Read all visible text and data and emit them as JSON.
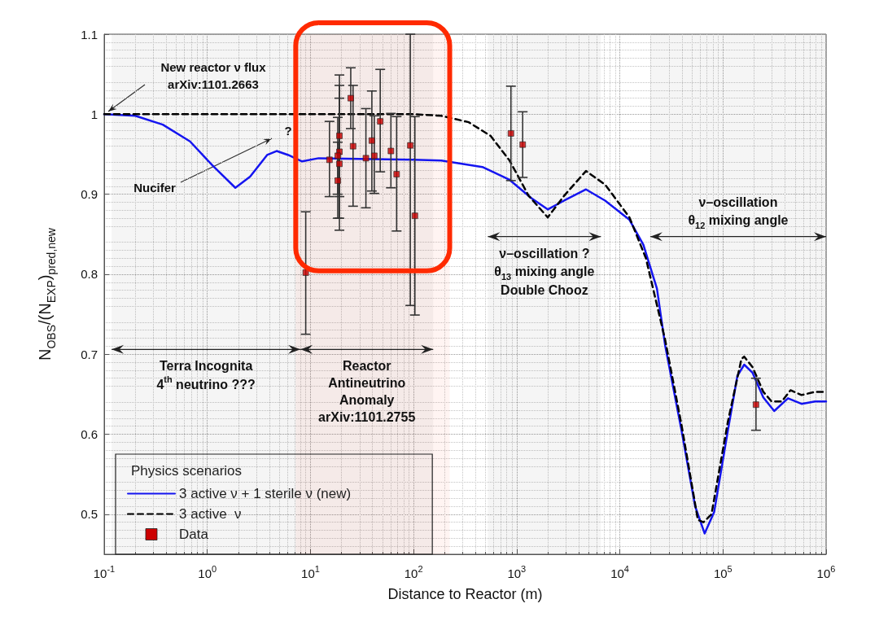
{
  "chart_data": {
    "type": "line",
    "xlabel": "Distance to Reactor (m)",
    "ylabel": "N$_{OBS}$/(N$_{EXP}$)$_{pred,new}$",
    "legend_title": "Physics scenarios",
    "log": "x",
    "grid": true,
    "legend": "bottom left",
    "xlim": [
      0.1,
      1000000
    ],
    "xticks": [
      {
        "value": 0.1,
        "label": "10$^{-1}$"
      },
      {
        "value": 1,
        "label": "10$^{0}$"
      },
      {
        "value": 10,
        "label": "10$^{1}$"
      },
      {
        "value": 100,
        "label": "10$^{2}$"
      },
      {
        "value": 1000,
        "label": "10$^{3}$"
      },
      {
        "value": 10000,
        "label": "10$^{4}$"
      },
      {
        "value": 100000,
        "label": "10$^{5}$"
      },
      {
        "value": 1000000,
        "label": "10$^{6}$"
      }
    ],
    "ylim": [
      0.45,
      1.1
    ],
    "yticks": [
      0.5,
      0.6,
      0.7,
      0.8,
      0.9,
      1,
      1.1
    ],
    "series": [
      {
        "name": "3 active ν + 1 sterile ν (new)",
        "color": "#1515f0",
        "line_style": "solid",
        "marker": "none",
        "x": [
          0.1,
          0.2,
          0.37,
          0.68,
          1.12,
          1.87,
          2.6,
          3.8,
          4.7,
          6.1,
          8.3,
          12,
          100,
          186,
          465,
          853,
          1390,
          2000,
          2880,
          4700,
          7200,
          12400,
          16900,
          22900,
          27500,
          39600,
          53700,
          66400,
          82200,
          111700,
          138000,
          160700,
          193200,
          246000,
          314000,
          427000,
          578000,
          783000,
          1000000
        ],
        "values": [
          1.0,
          0.998,
          0.987,
          0.966,
          0.936,
          0.908,
          0.922,
          0.949,
          0.954,
          0.949,
          0.941,
          0.945,
          0.943,
          0.942,
          0.934,
          0.918,
          0.895,
          0.881,
          0.892,
          0.906,
          0.892,
          0.868,
          0.837,
          0.782,
          0.711,
          0.605,
          0.51,
          0.476,
          0.503,
          0.605,
          0.673,
          0.687,
          0.677,
          0.646,
          0.629,
          0.645,
          0.638,
          0.641,
          0.641
        ]
      },
      {
        "name": "3 active  ν",
        "color": "#000000",
        "line_style": "dashed",
        "marker": "none",
        "x": [
          0.1,
          100,
          186,
          342,
          557,
          853,
          1306,
          2000,
          2880,
          4700,
          7200,
          12400,
          17900,
          27500,
          39600,
          57100,
          64600,
          77400,
          111700,
          151000,
          160700,
          193200,
          246000,
          296000,
          372000,
          452000,
          578000,
          783000,
          1000000
        ],
        "values": [
          1.0,
          1.0,
          0.998,
          0.99,
          0.973,
          0.942,
          0.898,
          0.871,
          0.898,
          0.929,
          0.912,
          0.871,
          0.82,
          0.718,
          0.612,
          0.493,
          0.49,
          0.5,
          0.616,
          0.694,
          0.697,
          0.684,
          0.653,
          0.641,
          0.641,
          0.655,
          0.649,
          0.653,
          0.653
        ]
      },
      {
        "name": "Data",
        "type": "scatter",
        "color": "#cc0000",
        "marker": "square",
        "x": [
          9.0,
          15.3,
          19.1,
          19.1,
          18.4,
          19.1,
          18.4,
          24.6,
          25.9,
          34.5,
          39.4,
          41.6,
          47.5,
          60.3,
          68.5,
          93,
          103,
          879,
          1143,
          209000
        ],
        "values": [
          0.802,
          0.943,
          0.973,
          0.953,
          0.948,
          0.938,
          0.917,
          1.02,
          0.96,
          0.945,
          0.967,
          0.948,
          0.991,
          0.954,
          0.925,
          0.961,
          0.873,
          0.976,
          0.962,
          0.637
        ],
        "errors": [
          [
            0.725,
            0.878
          ],
          [
            0.897,
            0.991
          ],
          [
            0.897,
            1.049
          ],
          [
            0.87,
            1.036
          ],
          [
            0.9,
            0.996
          ],
          [
            0.855,
            1.02
          ],
          [
            0.87,
            0.965
          ],
          [
            0.982,
            1.058
          ],
          [
            0.885,
            1.036
          ],
          [
            0.883,
            1.007
          ],
          [
            0.904,
            1.029
          ],
          [
            0.901,
            0.998
          ],
          [
            0.928,
            1.056
          ],
          [
            0.908,
            1.001
          ],
          [
            0.854,
            0.997
          ],
          [
            0.761,
            1.1
          ],
          [
            0.749,
            0.997
          ],
          [
            0.917,
            1.035
          ],
          [
            0.921,
            1.003
          ],
          [
            0.605,
            0.67
          ]
        ]
      }
    ],
    "annotations": [
      "New reactor ν flux\narXiv:1101.2663",
      "?",
      "Nucifer"
    ],
    "bands": [
      {
        "axis": "x",
        "from": 0.118,
        "to": 8.0,
        "label": "Terra Incognita\n4$^{th}$ neutrino ???"
      },
      {
        "axis": "x",
        "from": 8.0,
        "to": 155,
        "label": "Reactor\nAntineutrino\nAnomaly\narXiv:1101.2755"
      },
      {
        "axis": "x",
        "from": 525,
        "to": 6560,
        "label": "ν–oscillation ?\nθ$_{13}$ mixing angle\nDouble Chooz"
      },
      {
        "axis": "x",
        "from": 19700,
        "to": 1000000,
        "label": "ν–oscillation\nθ$_{12}$ mixing angle"
      },
      {
        "axis": "x",
        "from": 7.2,
        "to": 224,
        "color": "#ff2a00"
      }
    ]
  }
}
